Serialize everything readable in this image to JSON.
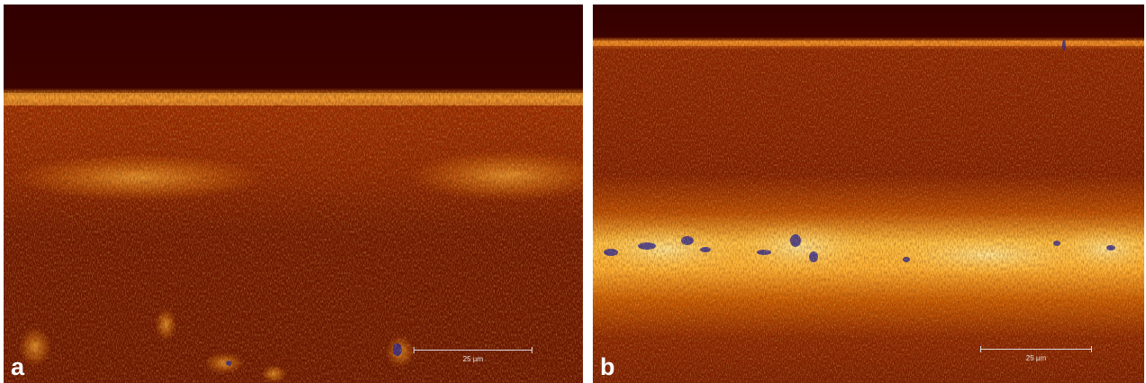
{
  "panels": [
    {
      "label": "a",
      "scale_label": "25 µm"
    },
    {
      "label": "b",
      "scale_label": "25 µm"
    }
  ],
  "colors": {
    "background_dark": "#3a0000",
    "tissue_dark": "#5a0c00",
    "tissue_mid": "#a32a00",
    "bright": "#ffb000",
    "highlight": "#fff2a0",
    "saturated": "#1a1a8c",
    "label_text": "#ffffff"
  }
}
